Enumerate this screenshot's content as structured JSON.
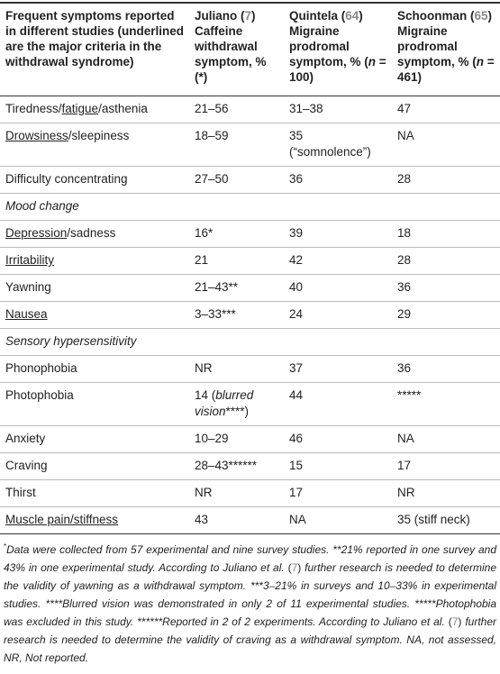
{
  "table": {
    "header": [
      {
        "name": [
          "Frequent symptoms reported in different studies (underlined are the major criteria in the withdrawal syndrome)"
        ]
      },
      {
        "name": [
          "Juliano (",
          {
            "text": "7",
            "style": "ref"
          },
          ")"
        ],
        "subtitle": [
          "Caffeine withdrawal symptom, % (*)"
        ]
      },
      {
        "name": [
          "Quintela (",
          {
            "text": "64",
            "style": "ref"
          },
          ")"
        ],
        "subtitle": [
          "Migraine prodromal symptom, % (",
          {
            "text": "n",
            "style": "i"
          },
          " = 100)"
        ]
      },
      {
        "name": [
          "Schoonman (",
          {
            "text": "65",
            "style": "ref"
          },
          ")"
        ],
        "subtitle": [
          "Migraine prodromal symptom, % (",
          {
            "text": "n",
            "style": "i"
          },
          " = 461)"
        ]
      }
    ],
    "rows": [
      {
        "cells": [
          [
            "Tiredness/",
            {
              "text": "fatigue",
              "style": "u"
            },
            "/asthenia"
          ],
          [
            "21–56"
          ],
          [
            "31–38"
          ],
          [
            "47"
          ]
        ]
      },
      {
        "cells": [
          [
            {
              "text": "Drowsiness",
              "style": "u"
            },
            "/sleepiness"
          ],
          [
            "18–59"
          ],
          [
            "35 (“somnolence”)"
          ],
          [
            "NA"
          ]
        ]
      },
      {
        "cells": [
          [
            "Difficulty concentrating"
          ],
          [
            "27–50"
          ],
          [
            "36"
          ],
          [
            "28"
          ]
        ]
      },
      {
        "section": "Mood change"
      },
      {
        "cells": [
          [
            {
              "text": "Depression",
              "style": "u"
            },
            "/sadness"
          ],
          [
            "16*"
          ],
          [
            "39"
          ],
          [
            "18"
          ]
        ]
      },
      {
        "cells": [
          [
            {
              "text": "Irritability",
              "style": "u"
            }
          ],
          [
            "21"
          ],
          [
            "42"
          ],
          [
            "28"
          ]
        ]
      },
      {
        "cells": [
          [
            "Yawning"
          ],
          [
            "21–43**"
          ],
          [
            "40"
          ],
          [
            "36"
          ]
        ]
      },
      {
        "cells": [
          [
            {
              "text": "Nausea",
              "style": "u"
            }
          ],
          [
            "3–33***"
          ],
          [
            "24"
          ],
          [
            "29"
          ]
        ]
      },
      {
        "section": "Sensory hypersensitivity"
      },
      {
        "cells": [
          [
            "Phonophobia"
          ],
          [
            "NR"
          ],
          [
            "37"
          ],
          [
            "36"
          ]
        ]
      },
      {
        "cells": [
          [
            "Photophobia"
          ],
          [
            "14 (",
            {
              "text": "blurred vision",
              "style": "i"
            },
            "****)"
          ],
          [
            "44"
          ],
          [
            "*****"
          ]
        ]
      },
      {
        "cells": [
          [
            "Anxiety"
          ],
          [
            "10–29"
          ],
          [
            "46"
          ],
          [
            "NA"
          ]
        ]
      },
      {
        "cells": [
          [
            "Craving"
          ],
          [
            "28–43******"
          ],
          [
            "15"
          ],
          [
            "17"
          ]
        ]
      },
      {
        "cells": [
          [
            "Thirst"
          ],
          [
            "NR"
          ],
          [
            "17"
          ],
          [
            "NR"
          ]
        ]
      },
      {
        "cells": [
          [
            {
              "text": "Muscle pain/stiffness",
              "style": "u"
            }
          ],
          [
            "43"
          ],
          [
            "NA"
          ],
          [
            "35 (stiff neck)"
          ]
        ]
      }
    ],
    "footnote": [
      {
        "text": "*",
        "style": "sup"
      },
      "Data were collected from 57 experimental and nine survey studies. **21% reported in one survey and 43% in one experimental study. According to Juliano et al. ",
      {
        "text": "(",
        "style": "up"
      },
      {
        "text": "7",
        "style": "ref"
      },
      {
        "text": ")",
        "style": "up"
      },
      " further research is needed to determine the validity of yawning as a withdrawal symptom. ***3–21% in surveys and 10–33% in experimental studies. ****Blurred vision was demonstrated in only 2 of 11 experimental studies. *****Photophobia was excluded in this study. ******Reported in 2 of 2 experiments. According to Juliano et al. ",
      {
        "text": "(",
        "style": "up"
      },
      {
        "text": "7",
        "style": "ref"
      },
      {
        "text": ")",
        "style": "up"
      },
      " further research is needed to determine the validity of craving as a withdrawal symptom. NA, not assessed, NR, Not reported."
    ]
  }
}
